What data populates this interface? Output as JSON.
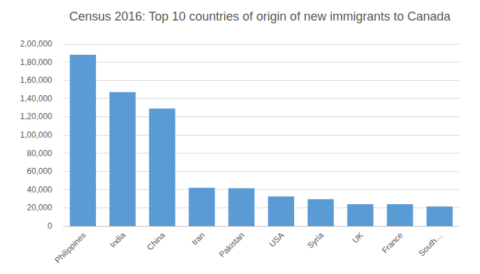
{
  "chart_data": {
    "type": "bar",
    "title": "Census 2016: Top 10 countries of origin of new immigrants to Canada",
    "categories": [
      "Philippines",
      "India",
      "China",
      "Iran",
      "Pakistan",
      "USA",
      "Syria",
      "UK",
      "France",
      "South…"
    ],
    "values": [
      188000,
      147000,
      129000,
      42000,
      41500,
      32500,
      29500,
      24000,
      24000,
      21500
    ],
    "color": "#5b9bd5",
    "ylim": [
      0,
      200000
    ],
    "yticks": [
      0,
      {
        "value": 20000,
        "label": "20,000"
      },
      {
        "value": 40000,
        "label": "40,000"
      },
      {
        "value": 60000,
        "label": "60,000"
      },
      {
        "value": 80000,
        "label": "80,000"
      },
      {
        "value": 100000,
        "label": "1,00,000"
      },
      {
        "value": 120000,
        "label": "1,20,000"
      },
      {
        "value": 140000,
        "label": "1,40,000"
      },
      {
        "value": 160000,
        "label": "1,60,000"
      },
      {
        "value": 180000,
        "label": "1,80,000"
      },
      {
        "value": 200000,
        "label": "2,00,000"
      }
    ],
    "grid": true
  }
}
